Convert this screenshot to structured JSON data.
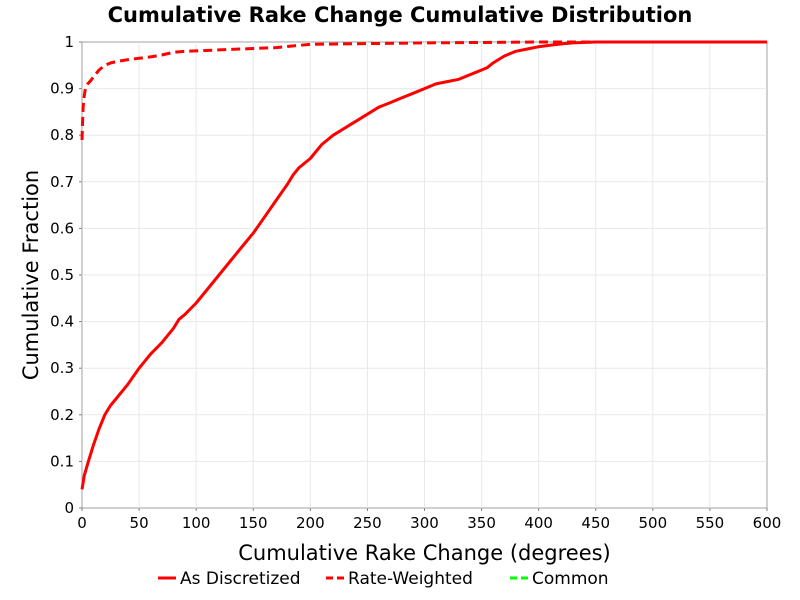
{
  "chart_data": {
    "type": "line",
    "title": "Cumulative Rake Change Cumulative Distribution",
    "xlabel": "Cumulative Rake Change (degrees)",
    "ylabel": "Cumulative Fraction",
    "xlim": [
      0,
      600
    ],
    "ylim": [
      0,
      1
    ],
    "xticks": [
      "0",
      "50",
      "100",
      "150",
      "200",
      "250",
      "300",
      "350",
      "400",
      "450",
      "500",
      "550",
      "600"
    ],
    "yticks": [
      "0",
      "0.1",
      "0.2",
      "0.3",
      "0.4",
      "0.5",
      "0.6",
      "0.7",
      "0.8",
      "0.9",
      "1"
    ],
    "grid": true,
    "legend_position": "bottom",
    "series": [
      {
        "name": "As Discretized",
        "color": "#ff0000",
        "dash": "solid",
        "x": [
          0,
          2,
          5,
          10,
          15,
          20,
          25,
          30,
          40,
          50,
          60,
          70,
          80,
          85,
          90,
          100,
          105,
          110,
          120,
          130,
          140,
          150,
          160,
          170,
          180,
          185,
          190,
          200,
          210,
          220,
          230,
          240,
          250,
          260,
          270,
          280,
          290,
          300,
          310,
          320,
          330,
          340,
          345,
          350,
          355,
          360,
          370,
          380,
          390,
          400,
          410,
          420,
          430,
          450,
          500,
          550,
          600
        ],
        "y": [
          0.04,
          0.07,
          0.095,
          0.135,
          0.17,
          0.2,
          0.22,
          0.235,
          0.265,
          0.3,
          0.33,
          0.355,
          0.385,
          0.405,
          0.415,
          0.44,
          0.455,
          0.47,
          0.5,
          0.53,
          0.56,
          0.59,
          0.625,
          0.66,
          0.695,
          0.715,
          0.73,
          0.75,
          0.78,
          0.8,
          0.815,
          0.83,
          0.845,
          0.86,
          0.87,
          0.88,
          0.89,
          0.9,
          0.91,
          0.915,
          0.92,
          0.93,
          0.935,
          0.94,
          0.945,
          0.955,
          0.97,
          0.98,
          0.985,
          0.99,
          0.993,
          0.996,
          0.998,
          1.0,
          1.0,
          1.0,
          1.0
        ]
      },
      {
        "name": "Rate-Weighted",
        "color": "#ff0000",
        "dash": "dashed",
        "x": [
          0,
          0.5,
          1,
          2,
          3,
          5,
          8,
          10,
          15,
          20,
          25,
          30,
          40,
          50,
          60,
          70,
          80,
          90,
          100,
          120,
          150,
          170,
          200,
          300,
          400,
          500,
          600
        ],
        "y": [
          0.79,
          0.83,
          0.86,
          0.885,
          0.9,
          0.91,
          0.918,
          0.925,
          0.94,
          0.95,
          0.955,
          0.958,
          0.962,
          0.965,
          0.968,
          0.972,
          0.978,
          0.98,
          0.981,
          0.983,
          0.986,
          0.988,
          0.995,
          0.998,
          1.0,
          1.0,
          1.0
        ]
      },
      {
        "name": "Common",
        "color": "#00ff00",
        "dash": "dashed",
        "x": [],
        "y": []
      }
    ]
  }
}
